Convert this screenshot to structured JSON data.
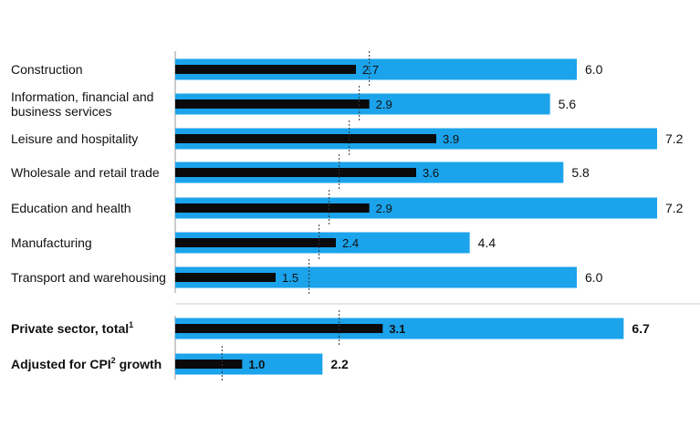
{
  "colors": {
    "light_bar": "#1ba3eb",
    "dark_bar": "#0a0a0a",
    "axis": "#9a9a9a",
    "divider": "#cccccc",
    "marker": "#333333"
  },
  "chart_data": {
    "type": "bar",
    "orientation": "horizontal",
    "grid": false,
    "legend": "none",
    "xlim": [
      0,
      7.2
    ],
    "groups": [
      {
        "bold": false,
        "rows": [
          {
            "label": [
              "Construction"
            ],
            "light": 6.0,
            "light_label": "6.0",
            "dark": 2.7,
            "dark_label": "2.7",
            "marker": 2.9
          },
          {
            "label": [
              "Information, financial and",
              "business services"
            ],
            "light": 5.6,
            "light_label": "5.6",
            "dark": 2.9,
            "dark_label": "2.9",
            "marker": 2.75
          },
          {
            "label": [
              "Leisure and hospitality"
            ],
            "light": 7.2,
            "light_label": "7.2",
            "dark": 3.9,
            "dark_label": "3.9",
            "marker": 2.6
          },
          {
            "label": [
              "Wholesale and retail trade"
            ],
            "light": 5.8,
            "light_label": "5.8",
            "dark": 3.6,
            "dark_label": "3.6",
            "marker": 2.45
          },
          {
            "label": [
              "Education and health"
            ],
            "light": 7.2,
            "light_label": "7.2",
            "dark": 2.9,
            "dark_label": "2.9",
            "marker": 2.3
          },
          {
            "label": [
              "Manufacturing"
            ],
            "light": 4.4,
            "light_label": "4.4",
            "dark": 2.4,
            "dark_label": "2.4",
            "marker": 2.15
          },
          {
            "label": [
              "Transport and warehousing"
            ],
            "light": 6.0,
            "light_label": "6.0",
            "dark": 1.5,
            "dark_label": "1.5",
            "marker": 2.0
          }
        ]
      },
      {
        "bold": true,
        "rows": [
          {
            "label": [
              "Private sector, total"
            ],
            "sup": "1",
            "suffix": "",
            "light": 6.7,
            "light_label": "6.7",
            "dark": 3.1,
            "dark_label": "3.1",
            "marker": 2.45
          },
          {
            "label": [
              "Adjusted for CPI"
            ],
            "sup": "2",
            "suffix": " growth",
            "light": 2.2,
            "light_label": "2.2",
            "dark": 1.0,
            "dark_label": "1.0",
            "marker": 0.7
          }
        ]
      }
    ]
  }
}
